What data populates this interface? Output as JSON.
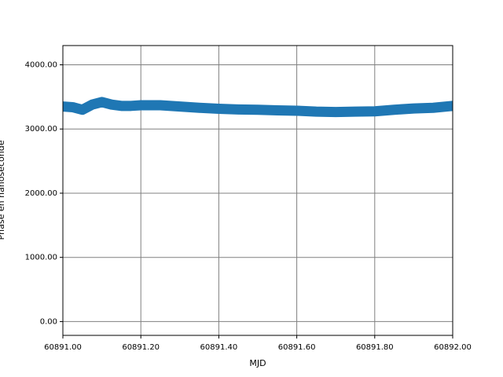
{
  "chart_data": {
    "type": "line",
    "xlabel": "MJD",
    "ylabel": "Phase en nanoseconde",
    "x": [
      60891.0,
      60891.025,
      60891.05,
      60891.075,
      60891.1,
      60891.125,
      60891.15,
      60891.175,
      60891.2,
      60891.25,
      60891.3,
      60891.35,
      60891.4,
      60891.45,
      60891.5,
      60891.55,
      60891.6,
      60891.65,
      60891.7,
      60891.75,
      60891.8,
      60891.85,
      60891.9,
      60891.95,
      60892.0
    ],
    "series": [
      {
        "color": "#1f77b4",
        "values": [
          3350,
          3340,
          3300,
          3380,
          3420,
          3380,
          3360,
          3360,
          3370,
          3370,
          3350,
          3330,
          3315,
          3305,
          3300,
          3290,
          3285,
          3270,
          3265,
          3270,
          3275,
          3300,
          3320,
          3330,
          3360
        ]
      }
    ],
    "xlim": [
      60891.0,
      60892.0
    ],
    "xticks": [
      {
        "value": 60891.0,
        "label": "60891.00"
      },
      {
        "value": 60891.2,
        "label": "60891.20"
      },
      {
        "value": 60891.4,
        "label": "60891.40"
      },
      {
        "value": 60891.6,
        "label": "60891.60"
      },
      {
        "value": 60891.8,
        "label": "60891.80"
      },
      {
        "value": 60892.0,
        "label": "60892.00"
      }
    ],
    "ylim": [
      -215,
      4300
    ],
    "yticks": [
      {
        "value": 0,
        "label": "0.00"
      },
      {
        "value": 1000,
        "label": "1000.00"
      },
      {
        "value": 2000,
        "label": "2000.00"
      },
      {
        "value": 3000,
        "label": "3000.00"
      },
      {
        "value": 4000,
        "label": "4000.00"
      }
    ],
    "grid": true
  }
}
